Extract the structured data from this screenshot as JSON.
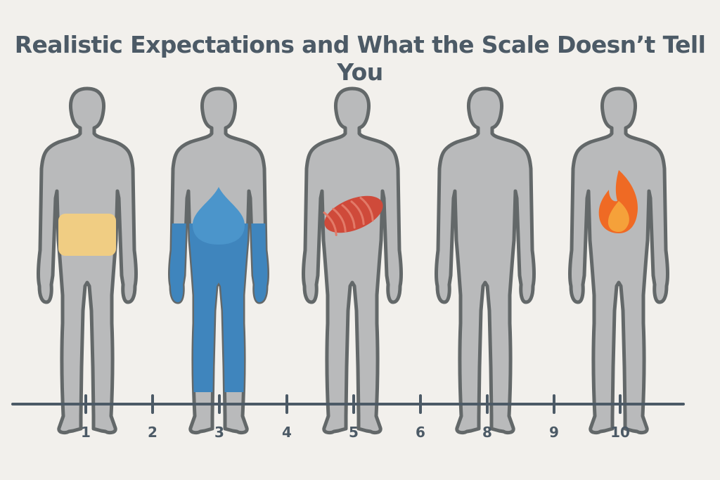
{
  "title": "Realistic Expectations and What the Scale Doesn’t Tell You",
  "timeline": {
    "ticks": [
      "1",
      "2",
      "3",
      "4",
      "5",
      "6",
      "8",
      "9",
      "10"
    ]
  },
  "figures": [
    {
      "name": "figure-fat",
      "overlay": "fat-region-icon"
    },
    {
      "name": "figure-water",
      "overlay": "water-drop-icon"
    },
    {
      "name": "figure-muscle",
      "overlay": "muscle-icon"
    },
    {
      "name": "figure-plain",
      "overlay": ""
    },
    {
      "name": "figure-fire",
      "overlay": "fire-icon"
    }
  ],
  "colors": {
    "background": "#f2f0ec",
    "body_fill": "#b9babb",
    "body_outline": "#636869",
    "fat": "#f0cd83",
    "water": "#3f85bd",
    "muscle": "#cf4a3a",
    "fire": "#f5a13a",
    "fire_outer": "#ef6a24",
    "axis": "#4c5a66",
    "title": "#4c5a66"
  }
}
